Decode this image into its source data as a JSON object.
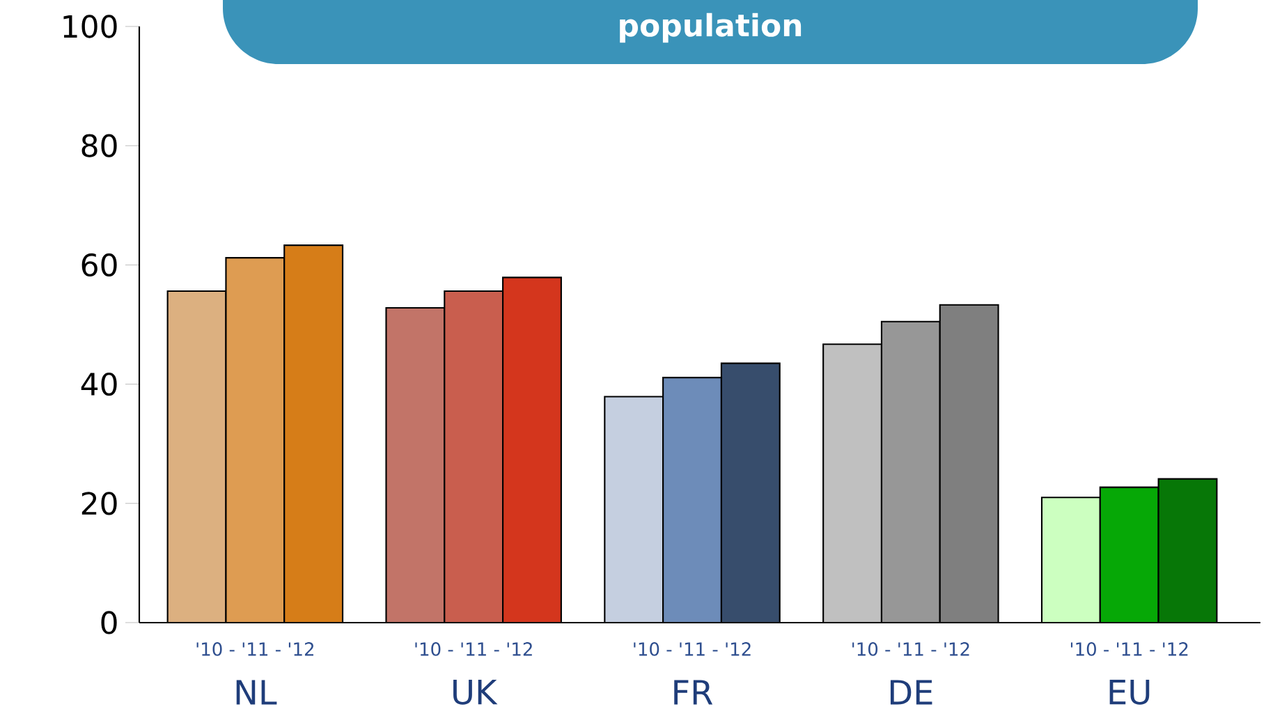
{
  "chart_data": {
    "type": "bar",
    "title": "population",
    "categories": [
      "NL",
      "UK",
      "FR",
      "DE",
      "EU"
    ],
    "series": [
      {
        "colors": [
          "#dcb080",
          "#c27468",
          "#c5cfe0",
          "#c0c0c0",
          "#ccffc0"
        ],
        "values": [
          55.6,
          52.8,
          37.9,
          46.7,
          21.0
        ]
      },
      {
        "colors": [
          "#de9c52",
          "#c95e4e",
          "#6d8cb9",
          "#979797",
          "#06a806"
        ],
        "values": [
          61.2,
          55.6,
          41.1,
          50.5,
          22.7
        ]
      },
      {
        "colors": [
          "#d67d18",
          "#d4361d",
          "#374d6c",
          "#7f7f7f",
          "#077707"
        ],
        "values": [
          63.3,
          57.9,
          43.5,
          53.3,
          24.1
        ]
      }
    ],
    "ylim": [
      0,
      100
    ],
    "yticks": [
      0,
      20,
      40,
      60,
      80,
      100
    ],
    "annotations": [
      "'10 - '11 - '12",
      "'10 - '11 - '12",
      "'10 - '11 - '12",
      "'10 - '11 - '12",
      "'10 - '11 - '12"
    ]
  }
}
